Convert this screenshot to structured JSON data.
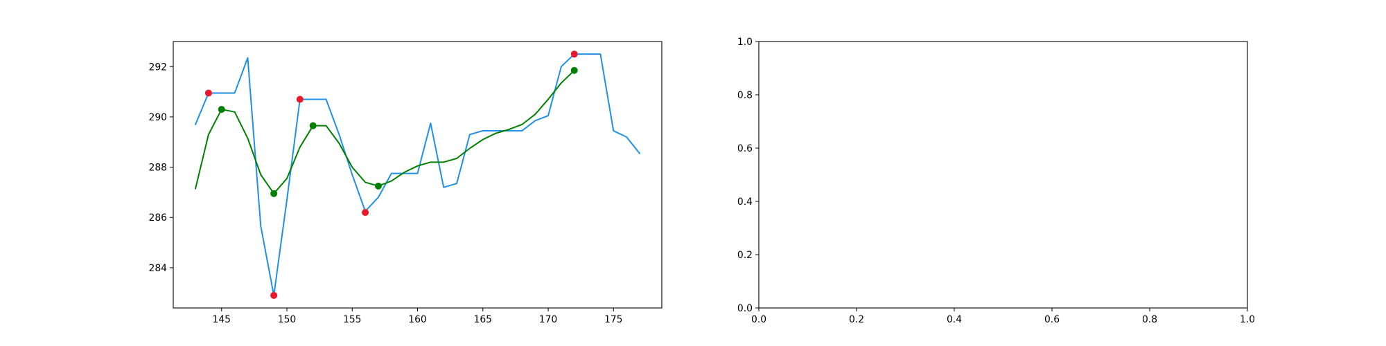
{
  "chart_data": [
    {
      "type": "line",
      "xlim": [
        141.3,
        178.7
      ],
      "ylim": [
        282.4,
        293.0
      ],
      "xticks": [
        145,
        150,
        155,
        160,
        165,
        170,
        175
      ],
      "yticks": [
        284,
        286,
        288,
        290,
        292
      ],
      "xtick_labels": [
        "145",
        "150",
        "155",
        "160",
        "165",
        "170",
        "175"
      ],
      "ytick_labels": [
        "284",
        "286",
        "288",
        "290",
        "292"
      ],
      "grid": false,
      "series": [
        {
          "kind": "line",
          "color": "#1e90e8",
          "x": [
            143,
            144,
            145,
            146,
            147,
            148,
            149,
            150,
            151,
            152,
            153,
            154,
            155,
            156,
            157,
            158,
            159,
            160,
            161,
            162,
            163,
            164,
            165,
            166,
            167,
            168,
            169,
            170,
            171,
            172,
            173,
            174,
            175,
            176,
            177
          ],
          "y": [
            289.7,
            290.95,
            290.95,
            290.95,
            292.35,
            285.65,
            282.9,
            286.7,
            290.7,
            290.7,
            290.7,
            289.3,
            287.7,
            286.25,
            286.8,
            287.75,
            287.75,
            287.75,
            289.75,
            287.2,
            287.35,
            289.3,
            289.45,
            289.45,
            289.45,
            289.45,
            289.85,
            290.05,
            292.0,
            292.5,
            292.5,
            292.5,
            289.45,
            289.2,
            288.55
          ]
        },
        {
          "kind": "line",
          "color": "#008000",
          "x": [
            143,
            144,
            145,
            146,
            147,
            148,
            149,
            150,
            151,
            152,
            153,
            154,
            155,
            156,
            157,
            158,
            159,
            160,
            161,
            162,
            163,
            164,
            165,
            166,
            167,
            168,
            169,
            170,
            171,
            172
          ],
          "y": [
            287.15,
            289.3,
            290.3,
            290.2,
            289.15,
            287.7,
            286.95,
            287.55,
            288.8,
            289.65,
            289.65,
            288.95,
            288.0,
            287.4,
            287.25,
            287.45,
            287.8,
            288.05,
            288.2,
            288.2,
            288.35,
            288.75,
            289.1,
            289.35,
            289.5,
            289.7,
            290.1,
            290.7,
            291.35,
            291.85
          ]
        },
        {
          "kind": "scatter",
          "color": "#e8192c",
          "x": [
            144,
            149,
            151,
            156,
            172
          ],
          "y": [
            290.95,
            282.9,
            290.7,
            286.2,
            292.5
          ]
        },
        {
          "kind": "scatter",
          "color": "#008000",
          "x": [
            145,
            149,
            152,
            157,
            172
          ],
          "y": [
            290.3,
            286.95,
            289.65,
            287.25,
            291.85
          ]
        }
      ]
    },
    {
      "type": "line",
      "xlim": [
        0.0,
        1.0
      ],
      "ylim": [
        0.0,
        1.0
      ],
      "xticks": [
        0.0,
        0.2,
        0.4,
        0.6,
        0.8,
        1.0
      ],
      "yticks": [
        0.0,
        0.2,
        0.4,
        0.6,
        0.8,
        1.0
      ],
      "xtick_labels": [
        "0.0",
        "0.2",
        "0.4",
        "0.6",
        "0.8",
        "1.0"
      ],
      "ytick_labels": [
        "0.0",
        "0.2",
        "0.4",
        "0.6",
        "0.8",
        "1.0"
      ],
      "grid": false,
      "series": []
    }
  ]
}
